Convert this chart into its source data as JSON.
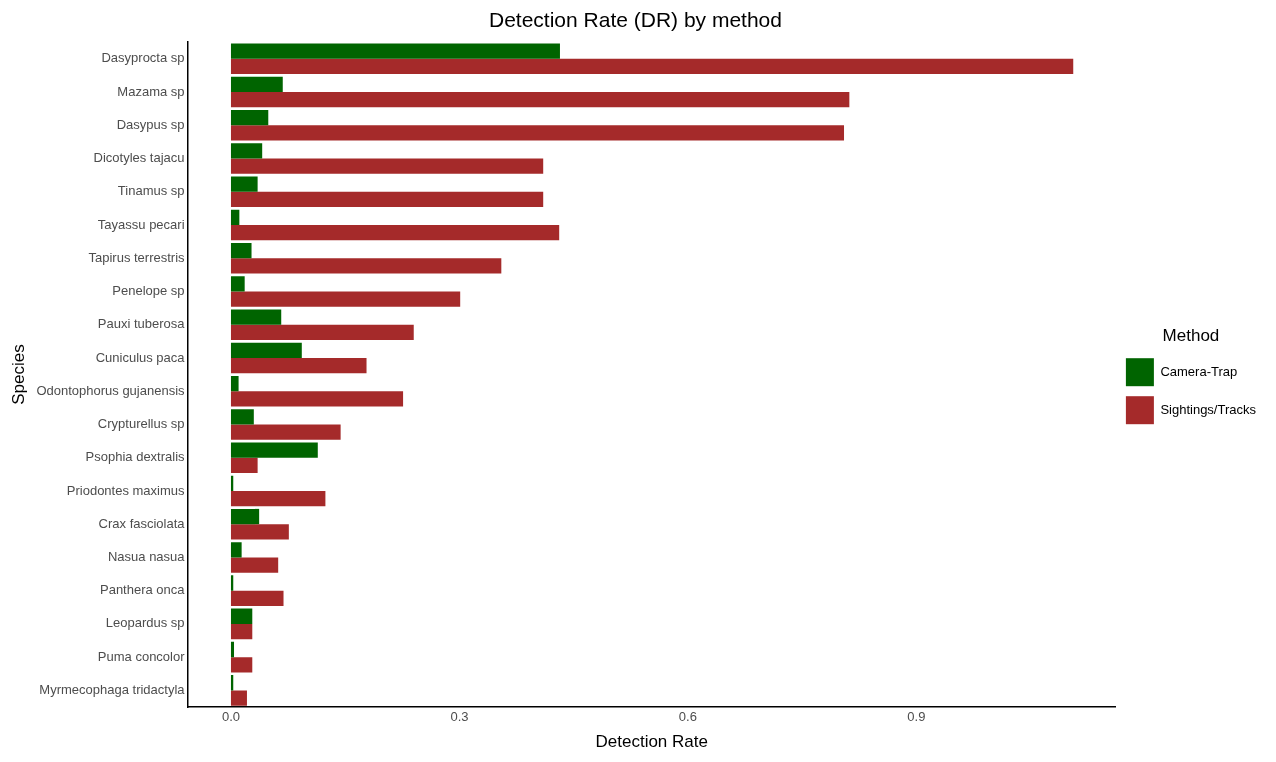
{
  "chart_data": {
    "type": "bar",
    "orientation": "horizontal",
    "title": "Detection Rate (DR) by method",
    "xlabel": "Detection Rate",
    "ylabel": "Species",
    "legend_title": "Method",
    "legend": "right",
    "grid": false,
    "categories": [
      "Dasyprocta sp",
      "Mazama sp",
      "Dasypus sp",
      "Dicotyles tajacu",
      "Tinamus sp",
      "Tayassu pecari",
      "Tapirus terrestris",
      "Penelope sp",
      "Pauxi tuberosa",
      "Cuniculus paca",
      "Odontophorus gujanensis",
      "Crypturellus sp",
      "Psophia dextralis",
      "Priodontes maximus",
      "Crax fasciolata",
      "Nasua nasua",
      "Panthera onca",
      "Leopardus sp",
      "Puma concolor",
      "Myrmecophaga tridactyla"
    ],
    "series": [
      {
        "name": "Camera-Trap",
        "color": "#006400",
        "values": [
          0.432,
          0.068,
          0.049,
          0.041,
          0.035,
          0.011,
          0.027,
          0.018,
          0.066,
          0.093,
          0.01,
          0.03,
          0.114,
          0.003,
          0.037,
          0.014,
          0.003,
          0.028,
          0.004,
          0.003
        ]
      },
      {
        "name": "Sightings/Tracks",
        "color": "#a52a2a",
        "values": [
          1.106,
          0.812,
          0.805,
          0.41,
          0.41,
          0.431,
          0.355,
          0.301,
          0.24,
          0.178,
          0.226,
          0.144,
          0.035,
          0.124,
          0.076,
          0.062,
          0.069,
          0.028,
          0.028,
          0.021
        ]
      }
    ],
    "xlim": [
      -0.057,
      1.162
    ],
    "xticks": [
      {
        "value": 0,
        "label": "0.0"
      },
      0.3,
      0.6,
      0.9
    ]
  }
}
